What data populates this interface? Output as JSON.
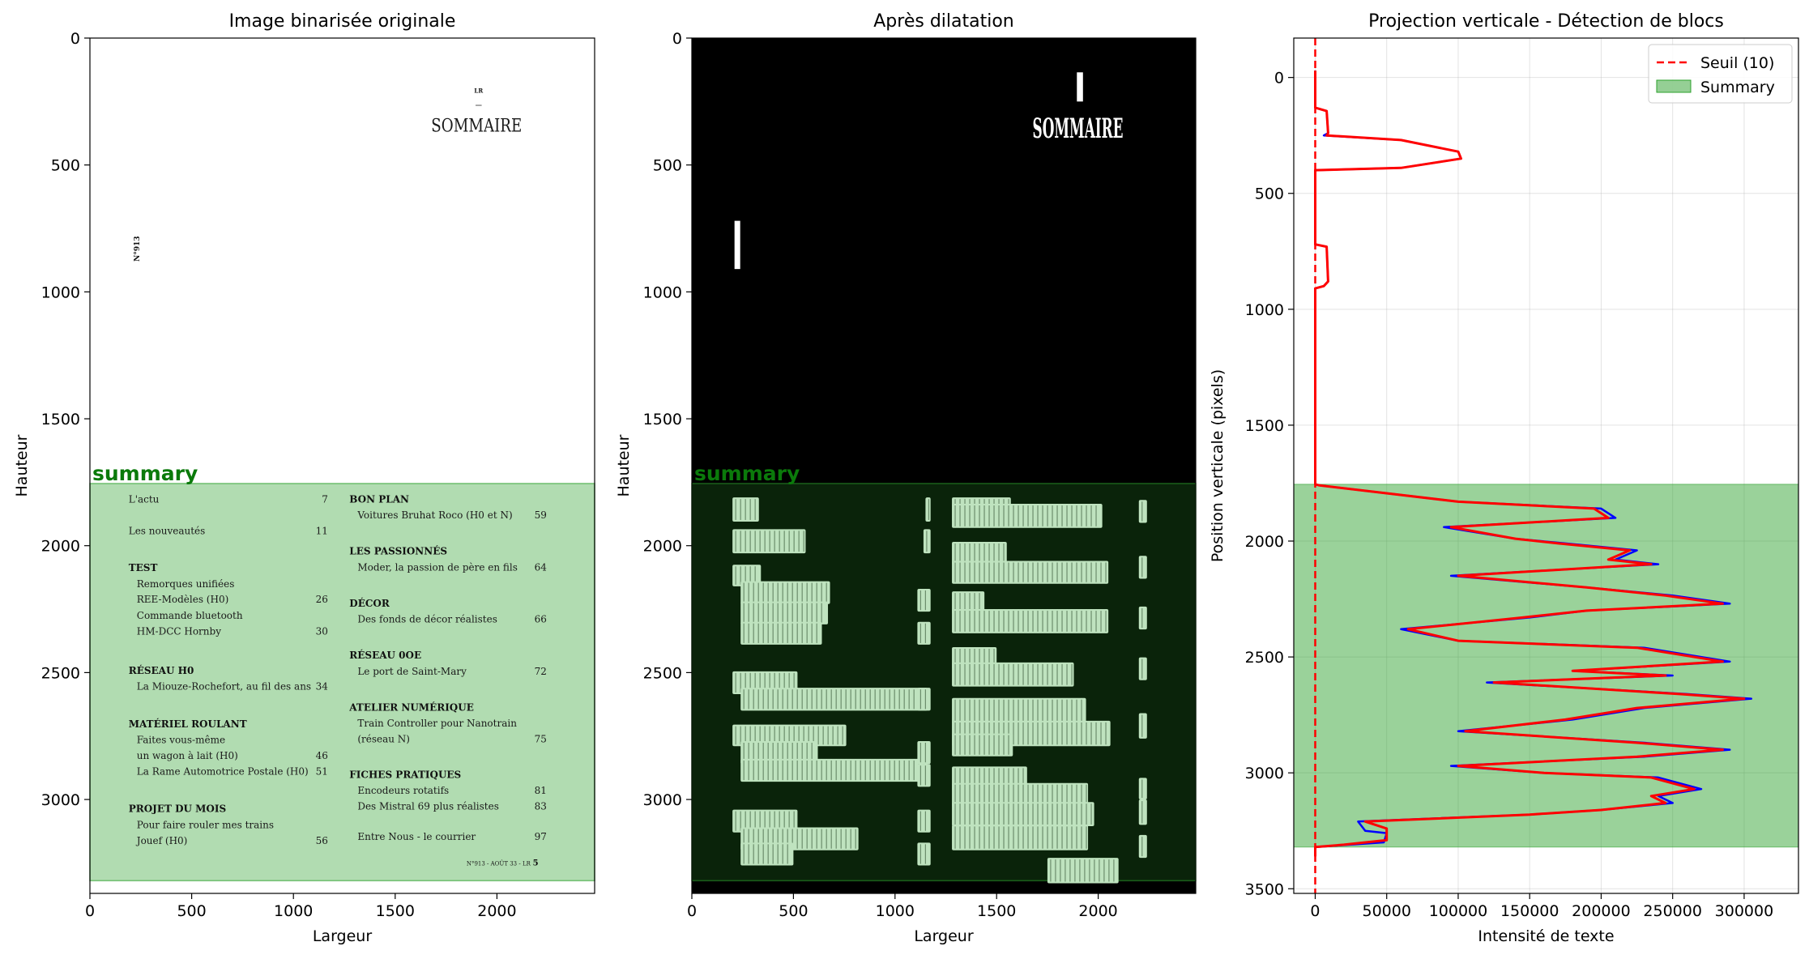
{
  "chart_data": [
    {
      "type": "image",
      "title": "Image binarisée originale",
      "xlabel": "Largeur",
      "ylabel": "Hauteur",
      "xlim": [
        0,
        2480
      ],
      "ylim": [
        3370,
        0
      ],
      "xticks": [
        0,
        500,
        1000,
        1500,
        2000
      ],
      "yticks": [
        0,
        500,
        1000,
        1500,
        2000,
        2500,
        3000
      ],
      "region": {
        "label": "summary",
        "color": "#2ca02c",
        "y_start": 1755,
        "y_end": 3320
      },
      "page": {
        "masthead_small": "LR",
        "heading": "SOMMAIRE",
        "issue_vertical": "N°913",
        "toc_left": [
          {
            "label": "L'actu",
            "page": "7",
            "bold": false,
            "indent": false
          },
          {
            "label": "Les nouveautés",
            "page": "11",
            "bold": false,
            "indent": false
          },
          {
            "label": "TEST",
            "page": "",
            "bold": true,
            "indent": false
          },
          {
            "label": "Remorques unifiées",
            "page": "",
            "bold": false,
            "indent": true
          },
          {
            "label": "REE-Modèles (H0)",
            "page": "26",
            "bold": false,
            "indent": true
          },
          {
            "label": "Commande bluetooth",
            "page": "",
            "bold": false,
            "indent": true
          },
          {
            "label": "HM-DCC Hornby",
            "page": "30",
            "bold": false,
            "indent": true
          },
          {
            "label": "RÉSEAU H0",
            "page": "",
            "bold": true,
            "indent": false
          },
          {
            "label": "La Miouze-Rochefort, au fil des ans",
            "page": "34",
            "bold": false,
            "indent": true
          },
          {
            "label": "MATÉRIEL ROULANT",
            "page": "",
            "bold": true,
            "indent": false
          },
          {
            "label": "Faites vous-même",
            "page": "",
            "bold": false,
            "indent": true
          },
          {
            "label": "un wagon à lait (H0)",
            "page": "46",
            "bold": false,
            "indent": true
          },
          {
            "label": "La Rame Automotrice Postale (H0)",
            "page": "51",
            "bold": false,
            "indent": true
          },
          {
            "label": "PROJET DU MOIS",
            "page": "",
            "bold": true,
            "indent": false
          },
          {
            "label": "Pour faire rouler mes trains",
            "page": "",
            "bold": false,
            "indent": true
          },
          {
            "label": "Jouef (H0)",
            "page": "56",
            "bold": false,
            "indent": true
          }
        ],
        "toc_right": [
          {
            "label": "BON PLAN",
            "page": "",
            "bold": true,
            "indent": false
          },
          {
            "label": "Voitures Bruhat Roco (H0 et N)",
            "page": "59",
            "bold": false,
            "indent": true
          },
          {
            "label": "LES PASSIONNÉS",
            "page": "",
            "bold": true,
            "indent": false
          },
          {
            "label": "Moder, la passion de père en fils",
            "page": "64",
            "bold": false,
            "indent": true
          },
          {
            "label": "DÉCOR",
            "page": "",
            "bold": true,
            "indent": false
          },
          {
            "label": "Des fonds de décor réalistes",
            "page": "66",
            "bold": false,
            "indent": true
          },
          {
            "label": "RÉSEAU 0OE",
            "page": "",
            "bold": true,
            "indent": false
          },
          {
            "label": "Le port de Saint-Mary",
            "page": "72",
            "bold": false,
            "indent": true
          },
          {
            "label": "ATELIER NUMÉRIQUE",
            "page": "",
            "bold": true,
            "indent": false
          },
          {
            "label": "Train Controller pour Nanotrain",
            "page": "",
            "bold": false,
            "indent": true
          },
          {
            "label": "(réseau N)",
            "page": "75",
            "bold": false,
            "indent": true
          },
          {
            "label": "FICHES PRATIQUES",
            "page": "",
            "bold": true,
            "indent": false
          },
          {
            "label": "Encodeurs rotatifs",
            "page": "81",
            "bold": false,
            "indent": true
          },
          {
            "label": "Des Mistral 69 plus réalistes",
            "page": "83",
            "bold": false,
            "indent": true
          },
          {
            "label": "Entre Nous - le courrier",
            "page": "97",
            "bold": false,
            "indent": true
          }
        ],
        "footer": "N°913 - AOÛT 33 - LR",
        "footer_page": "5"
      }
    },
    {
      "type": "image",
      "title": "Après dilatation",
      "xlabel": "Largeur",
      "ylabel": "Hauteur",
      "xlim": [
        0,
        2480
      ],
      "ylim": [
        3370,
        0
      ],
      "xticks": [
        0,
        500,
        1000,
        1500,
        2000
      ],
      "yticks": [
        0,
        500,
        1000,
        1500,
        2000,
        2500,
        3000
      ],
      "region": {
        "label": "summary",
        "color": "#2ca02c",
        "y_start": 1755,
        "y_end": 3320
      },
      "dilated_heading": "SOMMAIRE"
    },
    {
      "type": "line",
      "title": "Projection verticale - Détection de blocs",
      "xlabel": "Intensité de texte",
      "ylabel": "Position verticale (pixels)",
      "xlim": [
        -15000,
        338000
      ],
      "ylim": [
        3520,
        -170
      ],
      "xticks": [
        0,
        50000,
        100000,
        150000,
        200000,
        250000,
        300000
      ],
      "yticks": [
        0,
        500,
        1000,
        1500,
        2000,
        2500,
        3000,
        3500
      ],
      "grid": true,
      "legend_position": "top-right",
      "threshold": {
        "name": "Seuil (10)",
        "value": 10,
        "color": "#ff0000"
      },
      "region": {
        "name": "Summary",
        "color": "#2ca02c",
        "y_start": 1755,
        "y_end": 3320
      },
      "series": [
        {
          "color": "#0000ff",
          "points": [
            [
              0,
              -30
            ],
            [
              0,
              130
            ],
            [
              8000,
              145
            ],
            [
              9000,
              240
            ],
            [
              6000,
              250
            ],
            [
              60000,
              270
            ],
            [
              100000,
              320
            ],
            [
              102000,
              350
            ],
            [
              60000,
              390
            ],
            [
              0,
              400
            ],
            [
              0,
              720
            ],
            [
              8000,
              730
            ],
            [
              9000,
              880
            ],
            [
              6000,
              900
            ],
            [
              0,
              910
            ],
            [
              0,
              1755
            ],
            [
              3000,
              1760
            ],
            [
              100000,
              1830
            ],
            [
              200000,
              1860
            ],
            [
              210000,
              1900
            ],
            [
              90000,
              1940
            ],
            [
              140000,
              1990
            ],
            [
              175000,
              2010
            ],
            [
              225000,
              2040
            ],
            [
              210000,
              2080
            ],
            [
              240000,
              2100
            ],
            [
              95000,
              2150
            ],
            [
              190000,
              2200
            ],
            [
              250000,
              2235
            ],
            [
              290000,
              2270
            ],
            [
              190000,
              2300
            ],
            [
              150000,
              2330
            ],
            [
              60000,
              2380
            ],
            [
              100000,
              2430
            ],
            [
              230000,
              2460
            ],
            [
              290000,
              2520
            ],
            [
              180000,
              2560
            ],
            [
              250000,
              2580
            ],
            [
              120000,
              2610
            ],
            [
              260000,
              2660
            ],
            [
              305000,
              2680
            ],
            [
              230000,
              2720
            ],
            [
              180000,
              2770
            ],
            [
              100000,
              2820
            ],
            [
              230000,
              2870
            ],
            [
              290000,
              2900
            ],
            [
              230000,
              2930
            ],
            [
              95000,
              2970
            ],
            [
              160000,
              3000
            ],
            [
              240000,
              3020
            ],
            [
              270000,
              3070
            ],
            [
              240000,
              3100
            ],
            [
              250000,
              3130
            ],
            [
              200000,
              3160
            ],
            [
              150000,
              3180
            ],
            [
              30000,
              3210
            ],
            [
              35000,
              3250
            ],
            [
              50000,
              3260
            ],
            [
              48000,
              3300
            ],
            [
              0,
              3320
            ],
            [
              0,
              3360
            ]
          ]
        },
        {
          "color": "#ff0000",
          "points": [
            [
              0,
              -30
            ],
            [
              0,
              130
            ],
            [
              8000,
              145
            ],
            [
              9000,
              240
            ],
            [
              8000,
              250
            ],
            [
              60000,
              270
            ],
            [
              100000,
              320
            ],
            [
              102000,
              350
            ],
            [
              60000,
              390
            ],
            [
              0,
              400
            ],
            [
              0,
              720
            ],
            [
              8000,
              730
            ],
            [
              9000,
              880
            ],
            [
              6000,
              900
            ],
            [
              0,
              910
            ],
            [
              0,
              1755
            ],
            [
              3000,
              1760
            ],
            [
              100000,
              1830
            ],
            [
              195000,
              1860
            ],
            [
              205000,
              1900
            ],
            [
              95000,
              1940
            ],
            [
              140000,
              1990
            ],
            [
              170000,
              2010
            ],
            [
              220000,
              2040
            ],
            [
              205000,
              2080
            ],
            [
              235000,
              2100
            ],
            [
              100000,
              2150
            ],
            [
              190000,
              2200
            ],
            [
              245000,
              2235
            ],
            [
              285000,
              2270
            ],
            [
              190000,
              2300
            ],
            [
              145000,
              2330
            ],
            [
              65000,
              2380
            ],
            [
              100000,
              2430
            ],
            [
              225000,
              2460
            ],
            [
              285000,
              2520
            ],
            [
              180000,
              2560
            ],
            [
              245000,
              2580
            ],
            [
              125000,
              2610
            ],
            [
              255000,
              2660
            ],
            [
              300000,
              2680
            ],
            [
              225000,
              2720
            ],
            [
              175000,
              2770
            ],
            [
              105000,
              2820
            ],
            [
              225000,
              2870
            ],
            [
              285000,
              2900
            ],
            [
              225000,
              2930
            ],
            [
              100000,
              2970
            ],
            [
              160000,
              3000
            ],
            [
              235000,
              3020
            ],
            [
              265000,
              3070
            ],
            [
              235000,
              3100
            ],
            [
              245000,
              3130
            ],
            [
              200000,
              3160
            ],
            [
              150000,
              3180
            ],
            [
              35000,
              3210
            ],
            [
              50000,
              3240
            ],
            [
              50000,
              3290
            ],
            [
              20000,
              3310
            ],
            [
              0,
              3320
            ],
            [
              0,
              3360
            ]
          ]
        }
      ]
    }
  ]
}
